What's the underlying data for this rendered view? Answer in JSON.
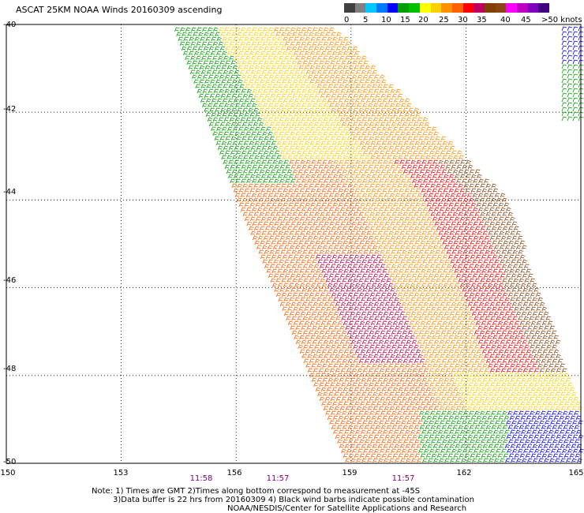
{
  "title": "ASCAT 25KM NOAA Winds 20160309 ascending",
  "legend": {
    "colors": [
      "#404040",
      "#808080",
      "#00c8ff",
      "#0078ff",
      "#0000ff",
      "#00a000",
      "#00c000",
      "#ffff00",
      "#ffd000",
      "#ff9000",
      "#ff6000",
      "#ff0000",
      "#c00060",
      "#804000",
      "#8b4513",
      "#ff00ff",
      "#c000c0",
      "#8000c0",
      "#400080"
    ],
    "labels": [
      "0",
      "5",
      "10",
      "15",
      "20",
      "25",
      "30",
      "35",
      "40",
      "45",
      ">50 knots"
    ]
  },
  "map": {
    "lat_labels": [
      "-40",
      "-42",
      "-44",
      "-46",
      "-48",
      "-50"
    ],
    "lon_labels": [
      "150",
      "153",
      "156",
      "159",
      "162",
      "165"
    ],
    "times": [
      "11:58",
      "11:57",
      "11:57"
    ],
    "lat_range": [
      -50,
      -40
    ],
    "lon_range": [
      150,
      165
    ]
  },
  "notes": {
    "line1": "Note: 1) Times are GMT 2)Times along bottom correspond to measurement at -45S",
    "line2": "3)Data buffer is 22 hrs from 20160309 4) Black wind barbs indicate possible contamination",
    "line3": "NOAA/NESDIS/Center for Satellite Applications and Research"
  }
}
